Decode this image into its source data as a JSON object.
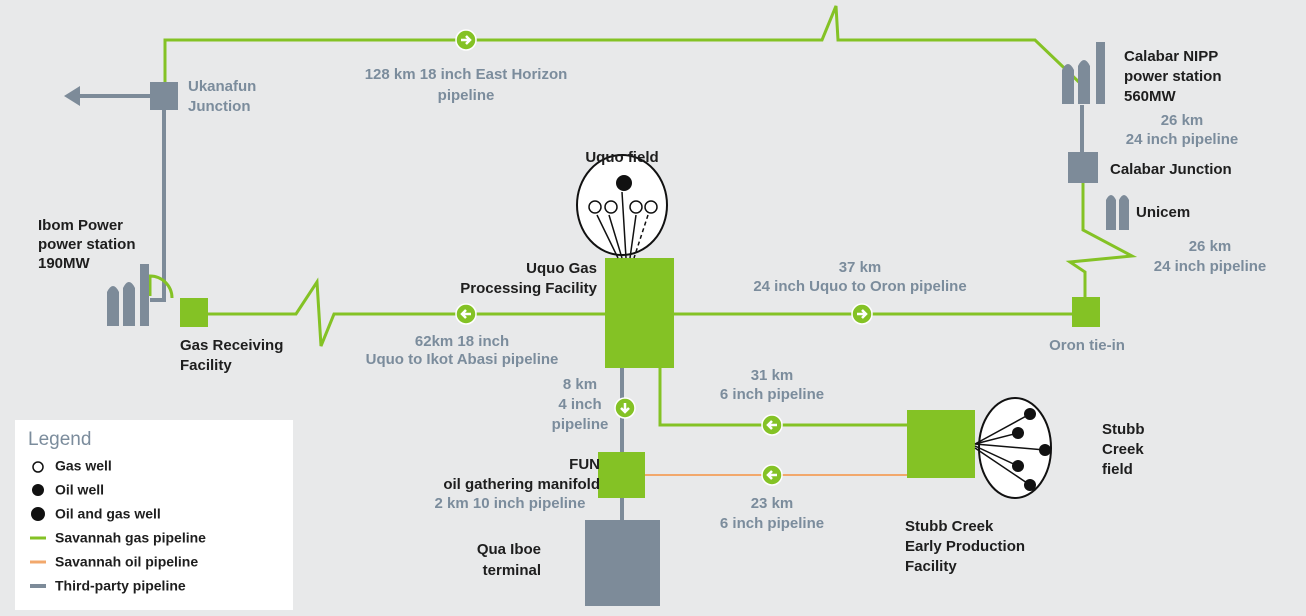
{
  "nodes": [
    {
      "lines": [
        "Ukanafun",
        "Junction"
      ]
    },
    {
      "lines": [
        "Calabar NIPP",
        "power station",
        "560MW"
      ]
    },
    {
      "lines": [
        "Calabar Junction"
      ]
    },
    {
      "lines": [
        "Unicem"
      ]
    },
    {
      "lines": [
        "Uquo field"
      ]
    },
    {
      "lines": [
        "Ibom Power",
        "power station",
        "190MW"
      ]
    },
    {
      "lines": [
        "Uquo Gas",
        "Processing Facility"
      ]
    },
    {
      "lines": [
        "Gas Receiving",
        "Facility"
      ]
    },
    {
      "lines": [
        "Oron tie-in"
      ]
    },
    {
      "lines": [
        "Stubb",
        "Creek",
        "field"
      ]
    },
    {
      "lines": [
        "FUN",
        "oil gathering manifold"
      ]
    },
    {
      "lines": [
        "Stubb Creek",
        "Early Production",
        "Facility"
      ]
    },
    {
      "lines": [
        "Qua Iboe",
        "terminal"
      ]
    }
  ],
  "pipelines": [
    {
      "lines": [
        "128 km 18 inch East Horizon",
        "pipeline"
      ]
    },
    {
      "lines": [
        "26 km",
        "24 inch pipeline"
      ]
    },
    {
      "lines": [
        "26 km",
        "24 inch pipeline"
      ]
    },
    {
      "lines": [
        "37 km",
        "24 inch Uquo to Oron pipeline"
      ]
    },
    {
      "lines": [
        "62km 18 inch",
        "Uquo to Ikot Abasi pipeline"
      ]
    },
    {
      "lines": [
        "8 km",
        "4 inch",
        "pipeline"
      ]
    },
    {
      "lines": [
        "31 km",
        "6 inch pipeline"
      ]
    },
    {
      "lines": [
        "2 km 10 inch pipeline"
      ]
    },
    {
      "lines": [
        "23 km",
        "6 inch pipeline"
      ]
    }
  ],
  "legend": {
    "title": "Legend",
    "items": [
      "Gas well",
      "Oil well",
      "Oil and gas well",
      "Savannah gas pipeline",
      "Savannah oil pipeline",
      "Third-party pipeline"
    ]
  }
}
